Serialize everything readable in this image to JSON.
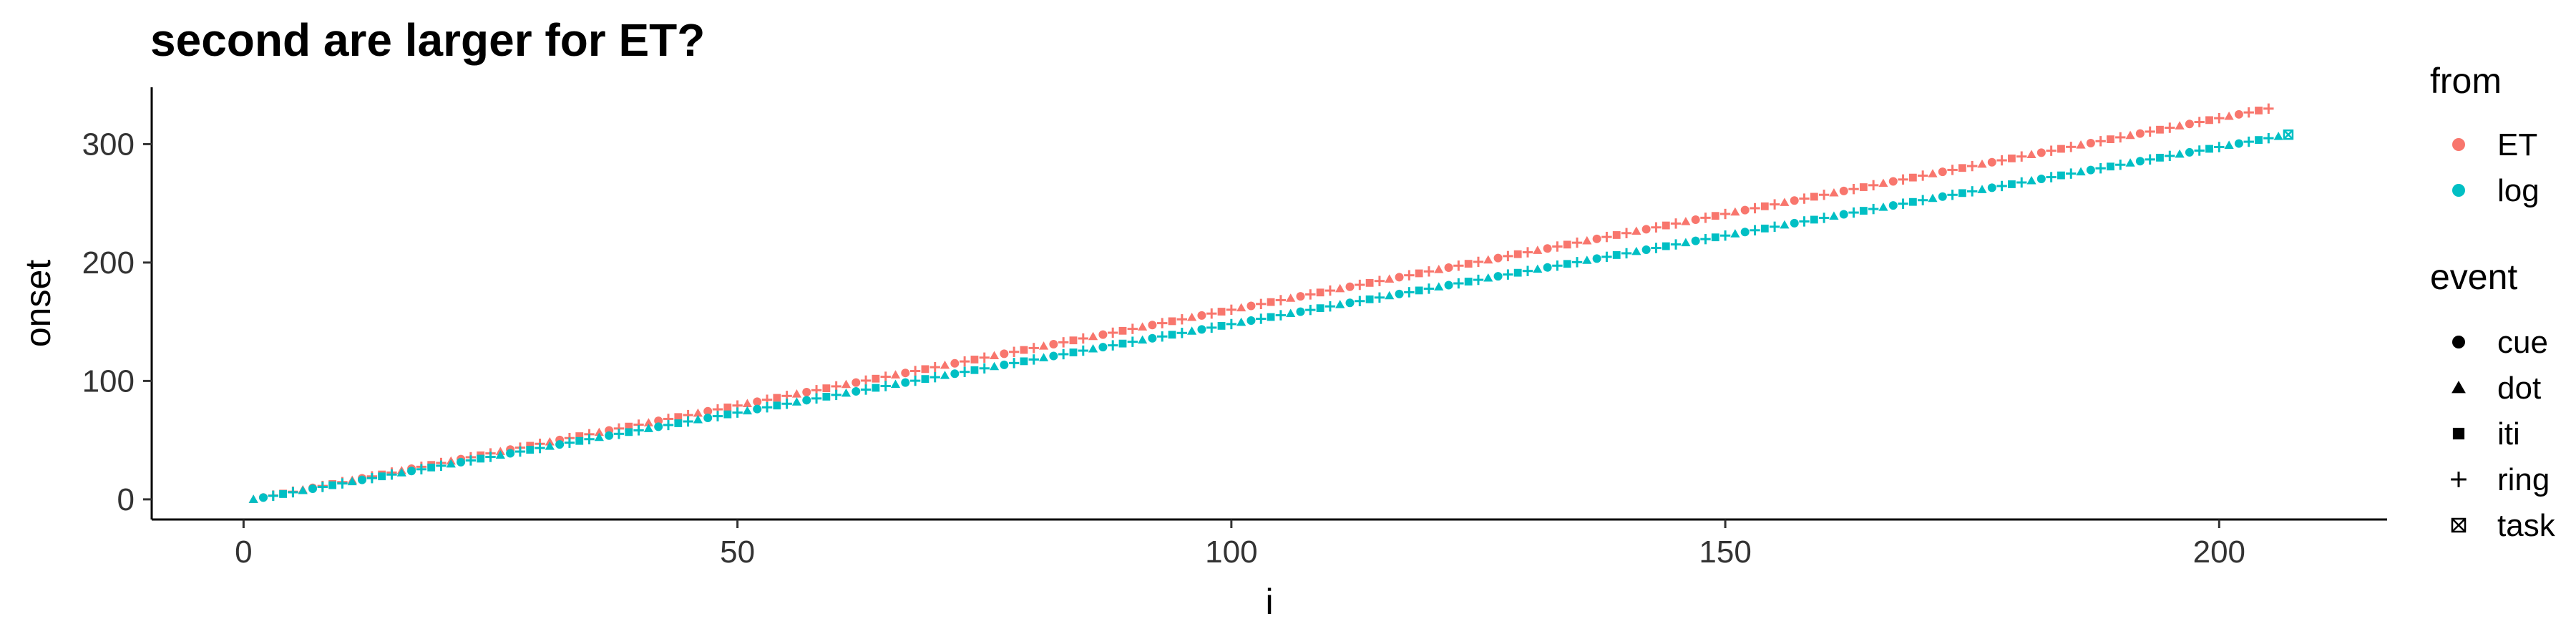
{
  "chart_data": {
    "type": "scatter",
    "title": "second are larger for ET?",
    "xlabel": "i",
    "ylabel": "onset",
    "xlim": [
      -9.3,
      217
    ],
    "ylim": [
      -17,
      348
    ],
    "xticks": [
      0,
      50,
      100,
      150,
      200
    ],
    "yticks": [
      0,
      100,
      200,
      300
    ],
    "grid": false,
    "legend_position": "right",
    "series": [
      {
        "name": "ET",
        "color": "#F8766D",
        "x": [
          1,
          205
        ],
        "y": [
          0,
          330
        ]
      },
      {
        "name": "log",
        "color": "#00BFC4",
        "x": [
          1,
          207
        ],
        "y": [
          0,
          308
        ]
      }
    ],
    "shape_cycle": [
      "dot",
      "cue",
      "ring",
      "iti",
      "ring"
    ],
    "legend": {
      "color_title": "from",
      "color_entries": [
        {
          "label": "ET",
          "color": "#F8766D"
        },
        {
          "label": "log",
          "color": "#00BFC4"
        }
      ],
      "shape_title": "event",
      "shape_entries": [
        {
          "label": "cue",
          "shape": "circle"
        },
        {
          "label": "dot",
          "shape": "triangle"
        },
        {
          "label": "iti",
          "shape": "square"
        },
        {
          "label": "ring",
          "shape": "plus"
        },
        {
          "label": "task",
          "shape": "boxed-x"
        }
      ]
    }
  }
}
